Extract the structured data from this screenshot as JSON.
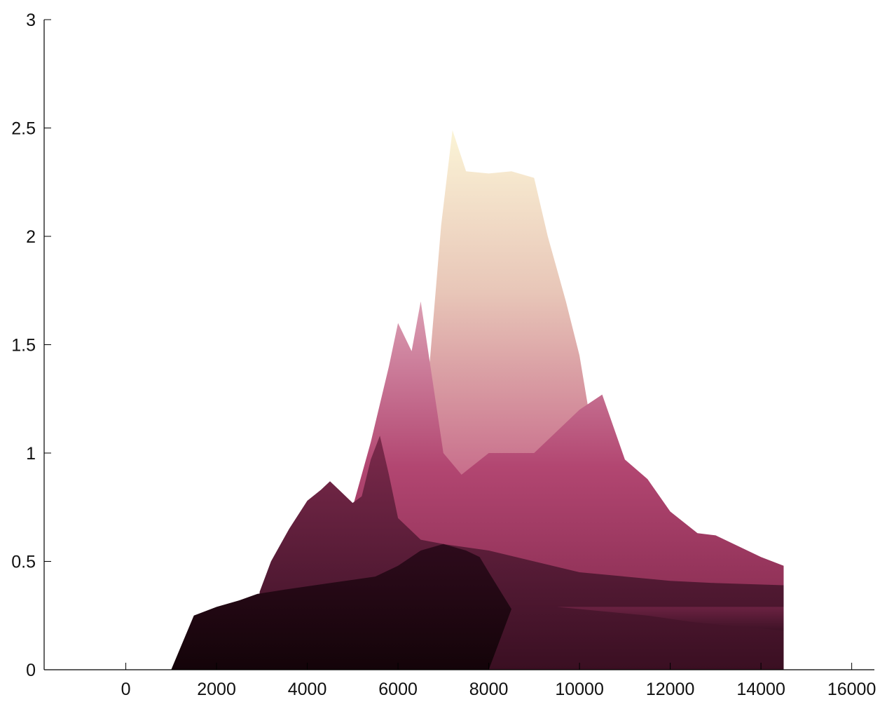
{
  "chart_data": {
    "type": "area",
    "title": "",
    "xlabel": "",
    "ylabel": "",
    "xlim": [
      -1800,
      16500
    ],
    "ylim": [
      0,
      3
    ],
    "x_ticks": [
      0,
      2000,
      4000,
      6000,
      8000,
      10000,
      12000,
      14000,
      16000
    ],
    "x_tick_labels": [
      "0",
      "2000",
      "4000",
      "6000",
      "8000",
      "10000",
      "12000",
      "14000",
      "16000"
    ],
    "y_ticks": [
      0,
      0.5,
      1,
      1.5,
      2,
      2.5,
      3
    ],
    "y_tick_labels": [
      "0",
      "0.5",
      "1",
      "1.5",
      "2",
      "2.5",
      "3"
    ],
    "grid": false,
    "colors": {
      "back_light": "#f7efcf",
      "back_pink": "#d99aac",
      "mid_magenta": "#a92f5c",
      "deep_plum": "#5a1a35",
      "front_dark": "#1a0610"
    },
    "series": [
      {
        "values": [
          [
            6500,
            0
          ],
          [
            6700,
            1.42
          ],
          [
            6950,
            2.05
          ],
          [
            7200,
            2.49
          ],
          [
            7500,
            2.3
          ],
          [
            8000,
            2.29
          ],
          [
            8500,
            2.3
          ],
          [
            9000,
            2.27
          ],
          [
            9300,
            2.0
          ],
          [
            9700,
            1.7
          ],
          [
            10000,
            1.45
          ],
          [
            10200,
            1.2
          ],
          [
            10500,
            1.0
          ],
          [
            11000,
            0
          ]
        ]
      },
      {
        "values": [
          [
            4600,
            0
          ],
          [
            5000,
            0.75
          ],
          [
            5400,
            1.05
          ],
          [
            5800,
            1.4
          ],
          [
            6000,
            1.6
          ],
          [
            6300,
            1.47
          ],
          [
            6500,
            1.7
          ],
          [
            7000,
            1.0
          ],
          [
            7400,
            0.9
          ],
          [
            8000,
            1.0
          ],
          [
            9000,
            1.0
          ],
          [
            10000,
            1.2
          ],
          [
            10500,
            1.27
          ],
          [
            11000,
            0.97
          ],
          [
            11500,
            0.88
          ],
          [
            12000,
            0.73
          ],
          [
            12600,
            0.63
          ],
          [
            13000,
            0.62
          ],
          [
            14000,
            0.52
          ],
          [
            14500,
            0.48
          ],
          [
            14500,
            0
          ]
        ]
      },
      {
        "values": [
          [
            2900,
            0
          ],
          [
            2950,
            0.36
          ],
          [
            3200,
            0.5
          ],
          [
            3600,
            0.65
          ],
          [
            4000,
            0.78
          ],
          [
            4300,
            0.83
          ],
          [
            4500,
            0.87
          ],
          [
            4700,
            0.83
          ],
          [
            5000,
            0.77
          ],
          [
            5200,
            0.8
          ],
          [
            5400,
            0.97
          ],
          [
            5600,
            1.08
          ],
          [
            5800,
            0.9
          ],
          [
            6000,
            0.7
          ],
          [
            6500,
            0.6
          ],
          [
            7000,
            0.58
          ],
          [
            8000,
            0.55
          ],
          [
            9000,
            0.5
          ],
          [
            10000,
            0.45
          ],
          [
            11000,
            0.43
          ],
          [
            12000,
            0.41
          ],
          [
            13000,
            0.4
          ],
          [
            14500,
            0.39
          ],
          [
            14500,
            0
          ]
        ]
      },
      {
        "values": [
          [
            1000,
            0
          ],
          [
            1500,
            0.25
          ],
          [
            2000,
            0.29
          ],
          [
            2500,
            0.32
          ],
          [
            2900,
            0.35
          ],
          [
            3500,
            0.37
          ],
          [
            4500,
            0.4
          ],
          [
            5500,
            0.43
          ],
          [
            6000,
            0.48
          ],
          [
            6500,
            0.55
          ],
          [
            7000,
            0.58
          ],
          [
            7500,
            0.55
          ],
          [
            7800,
            0.52
          ],
          [
            8000,
            0.45
          ],
          [
            8500,
            0.28
          ],
          [
            8000,
            0
          ]
        ]
      },
      {
        "values": [
          [
            8500,
            0.29
          ],
          [
            9500,
            0.29
          ],
          [
            10500,
            0.27
          ],
          [
            11500,
            0.25
          ],
          [
            12500,
            0.22
          ],
          [
            13500,
            0.2
          ],
          [
            14500,
            0.18
          ],
          [
            14500,
            0.29
          ]
        ]
      }
    ]
  }
}
